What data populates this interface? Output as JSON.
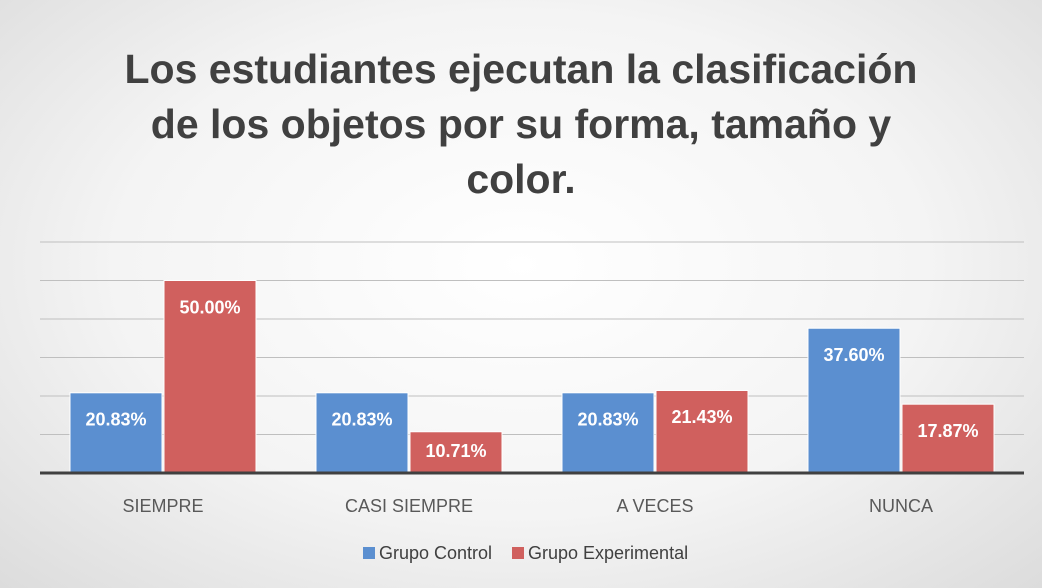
{
  "chart_data": {
    "type": "bar",
    "title": "Los estudiantes ejecutan la clasificación de los objetos por su forma, tamaño y color.",
    "categories": [
      "SIEMPRE",
      "CASI SIEMPRE",
      "A VECES",
      "NUNCA"
    ],
    "series": [
      {
        "name": "Grupo Control",
        "color": "#5b8fd0",
        "values": [
          20.83,
          20.83,
          20.83,
          37.6
        ],
        "value_labels": [
          "20.83%",
          "20.83%",
          "20.83%",
          "37.60%"
        ]
      },
      {
        "name": "Grupo Experimental",
        "color": "#d0605e",
        "values": [
          50,
          10.71,
          21.43,
          17.87
        ],
        "value_labels": [
          "50.00%",
          "10.71%",
          "21.43%",
          "17.87%"
        ]
      }
    ],
    "ylim": [
      0,
      60
    ],
    "yticks": [
      0,
      10,
      20,
      30,
      40,
      50,
      60
    ],
    "grid": true,
    "legend": "bottom"
  }
}
